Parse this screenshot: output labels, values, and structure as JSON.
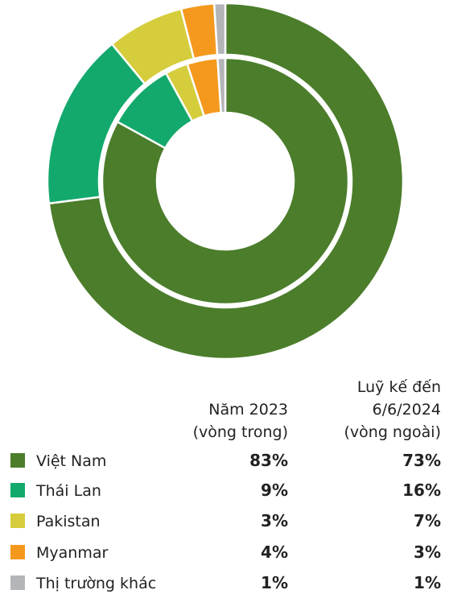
{
  "chart_data": {
    "type": "donut",
    "categories": [
      "Việt Nam",
      "Thái Lan",
      "Pakistan",
      "Myanmar",
      "Thị trường khác"
    ],
    "colors": [
      "#4b7d2b",
      "#14a96c",
      "#d5cd3c",
      "#f4991d",
      "#b3b5b9"
    ],
    "series": [
      {
        "name": [
          "Năm 2023",
          "(vòng trong)"
        ],
        "ring": "inner",
        "values": [
          83,
          9,
          3,
          4,
          1
        ],
        "value_labels": [
          "83%",
          "9%",
          "3%",
          "4%",
          "1%"
        ]
      },
      {
        "name": [
          "Luỹ kế đến",
          "6/6/2024",
          "(vòng ngoài)"
        ],
        "ring": "outer",
        "values": [
          73,
          16,
          7,
          3,
          1
        ],
        "value_labels": [
          "73%",
          "16%",
          "7%",
          "3%",
          "1%"
        ]
      }
    ]
  }
}
